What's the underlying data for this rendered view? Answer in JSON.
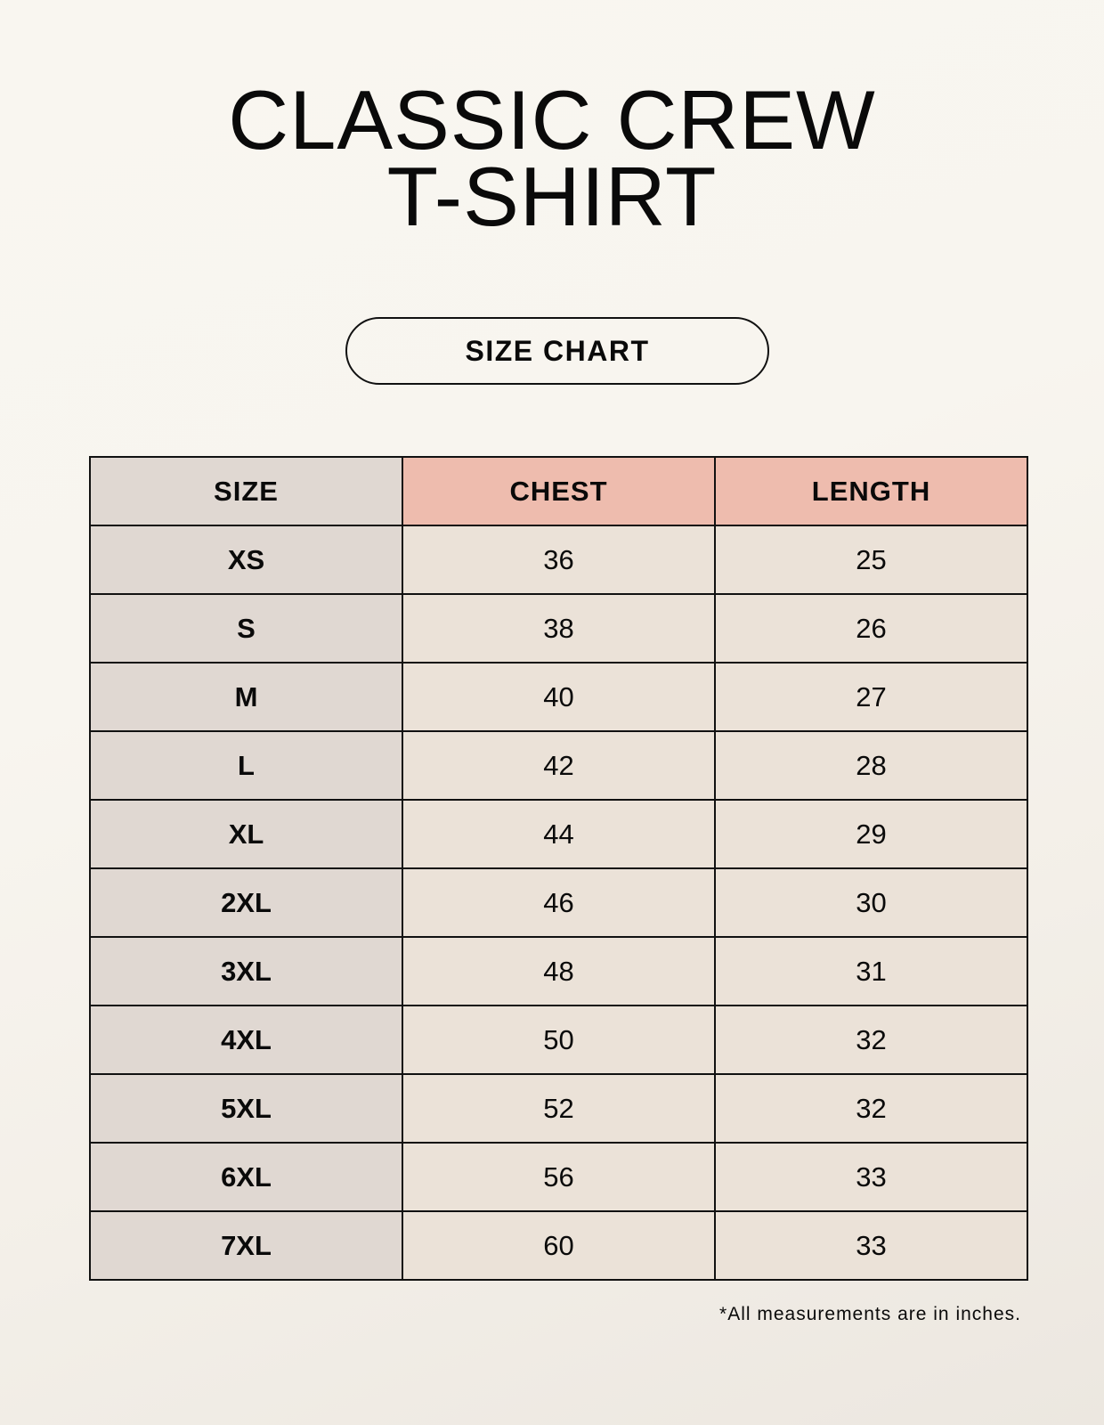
{
  "title": {
    "line1": "CLASSIC CREW",
    "line2": "T-SHIRT"
  },
  "badge": "SIZE CHART",
  "table": {
    "headers": [
      "SIZE",
      "CHEST",
      "LENGTH"
    ],
    "rows": [
      [
        "XS",
        "36",
        "25"
      ],
      [
        "S",
        "38",
        "26"
      ],
      [
        "M",
        "40",
        "27"
      ],
      [
        "L",
        "42",
        "28"
      ],
      [
        "XL",
        "44",
        "29"
      ],
      [
        "2XL",
        "46",
        "30"
      ],
      [
        "3XL",
        "48",
        "31"
      ],
      [
        "4XL",
        "50",
        "32"
      ],
      [
        "5XL",
        "52",
        "32"
      ],
      [
        "6XL",
        "56",
        "33"
      ],
      [
        "7XL",
        "60",
        "33"
      ]
    ]
  },
  "footnote": "*All measurements are in inches.",
  "colors": {
    "size_column": "#e0d8d2",
    "measure_header": "#eebcae",
    "measure_cells": "#ebe2d8"
  }
}
